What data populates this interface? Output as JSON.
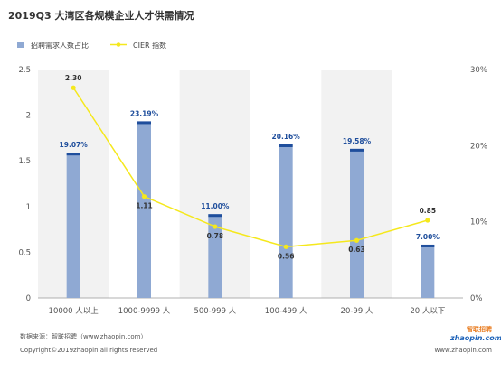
{
  "title": "2019Q3 大湾区各规模企业人才供需情况",
  "chart_data": {
    "type": "bar",
    "categories": [
      "10000 人以上",
      "1000-9999 人",
      "500-999 人",
      "100-499 人",
      "20-99 人",
      "20 人以下"
    ],
    "series": [
      {
        "name": "招聘需求人数占比",
        "axis": "right",
        "values": [
          19.07,
          23.19,
          11.0,
          20.16,
          19.58,
          7.0
        ],
        "labels": [
          "19.07%",
          "23.19%",
          "11.00%",
          "20.16%",
          "19.58%",
          "7.00%"
        ],
        "color": "#8fa9d3"
      },
      {
        "name": "CIER 指数",
        "type": "line",
        "axis": "left",
        "values": [
          2.3,
          1.11,
          0.78,
          0.56,
          0.63,
          0.85
        ],
        "labels": [
          "2.30",
          "1.11",
          "0.78",
          "0.56",
          "0.63",
          "0.85"
        ],
        "color": "#f5e81c"
      }
    ],
    "y_left": {
      "ylim": [
        0,
        2.5
      ],
      "ticks": [
        "0",
        "0.5",
        "1",
        "1.5",
        "2",
        "2.5"
      ]
    },
    "y_right": {
      "ylim": [
        0,
        30
      ],
      "unit": "%",
      "ticks": [
        "0%",
        "10%",
        "20%",
        "30%"
      ]
    },
    "grid": false,
    "legend_position": "top-left",
    "bar_cap_color": "#1f4e9c",
    "band_color": "#f2f2f2"
  },
  "footer": {
    "source": "数据来源：智联招聘（www.zhaopin.com）",
    "copyright": "Copyright©2019zhaopin all rights reserved",
    "website": "www.zhaopin.com"
  },
  "logo": {
    "line1": "智联招聘",
    "line2": "zhaopin.com"
  }
}
